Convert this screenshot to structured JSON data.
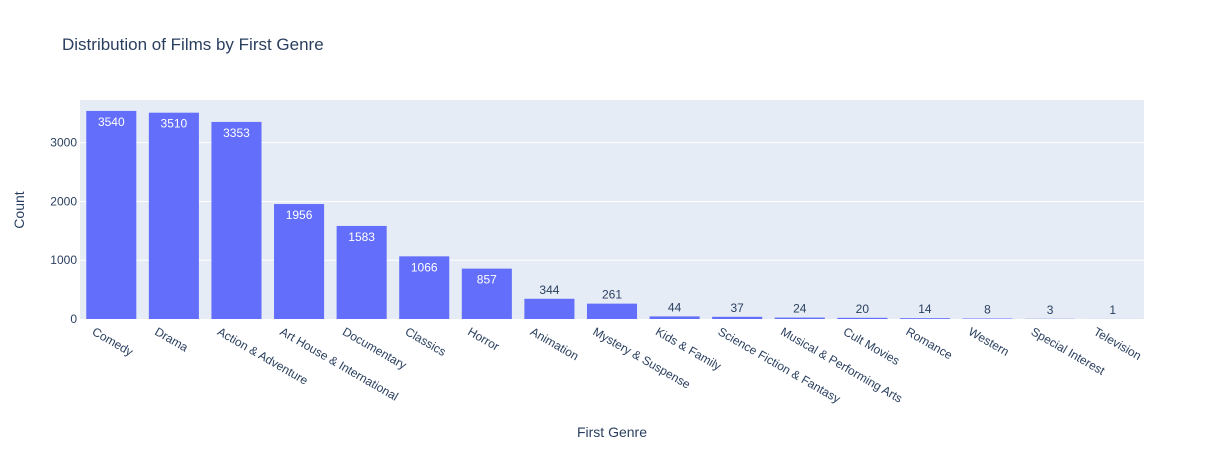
{
  "chart_data": {
    "type": "bar",
    "title": "Distribution of Films by First Genre",
    "xlabel": "First Genre",
    "ylabel": "Count",
    "ylim": [
      0,
      3726
    ],
    "yticks": [
      0,
      1000,
      2000,
      3000
    ],
    "ytick_labels": [
      "0",
      "1000",
      "2000",
      "3000"
    ],
    "grid": true,
    "legend": "none",
    "categories": [
      "Comedy",
      "Drama",
      "Action & Adventure",
      "Art House & International",
      "Documentary",
      "Classics",
      "Horror",
      "Animation",
      "Mystery & Suspense",
      "Kids & Family",
      "Science Fiction & Fantasy",
      "Musical & Performing Arts",
      "Cult Movies",
      "Romance",
      "Western",
      "Special Interest",
      "Television"
    ],
    "values": [
      3540,
      3510,
      3353,
      1956,
      1583,
      1066,
      857,
      344,
      261,
      44,
      37,
      24,
      20,
      14,
      8,
      3,
      1
    ],
    "colors": {
      "bar": "#636efa",
      "plot_bg": "#e5ecf6",
      "grid": "#ffffff",
      "text": "#2a3f5f",
      "label_inside": "#ffffff"
    }
  }
}
